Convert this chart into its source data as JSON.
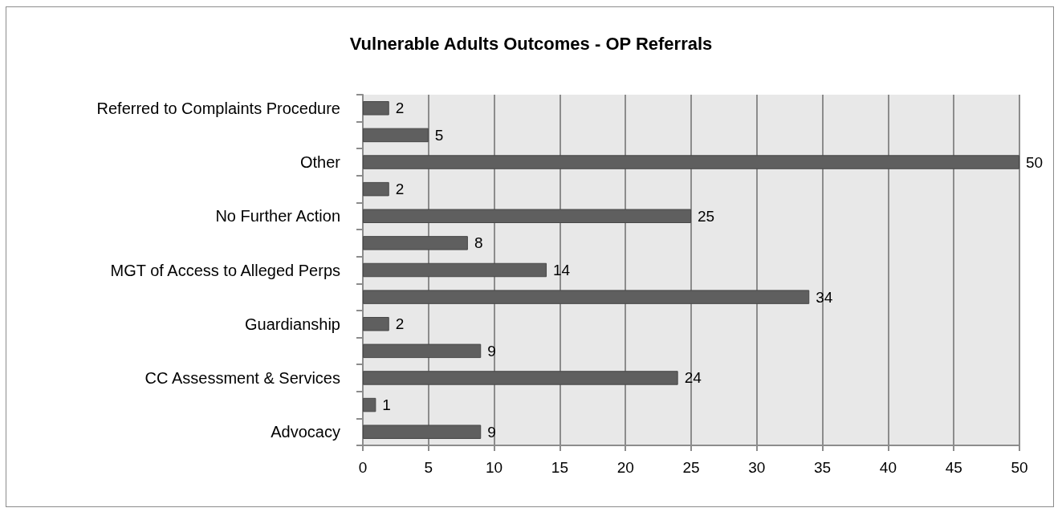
{
  "chart_data": {
    "type": "bar",
    "orientation": "horizontal",
    "title": "Vulnerable Adults Outcomes - OP Referrals",
    "categories": [
      "Referred to Complaints Procedure",
      null,
      "Other",
      null,
      "No Further Action",
      null,
      "MGT of Access to Alleged Perps",
      null,
      "Guardianship",
      null,
      "CC Assessment & Services",
      null,
      "Advocacy"
    ],
    "values": [
      2,
      5,
      50,
      2,
      25,
      8,
      14,
      34,
      2,
      9,
      24,
      1,
      9
    ],
    "color": "#5f5f5f",
    "xlim": [
      0,
      50
    ],
    "xticks": [
      0,
      5,
      10,
      15,
      20,
      25,
      30,
      35,
      40,
      45,
      50
    ],
    "grid": "x",
    "data_labels": true
  }
}
